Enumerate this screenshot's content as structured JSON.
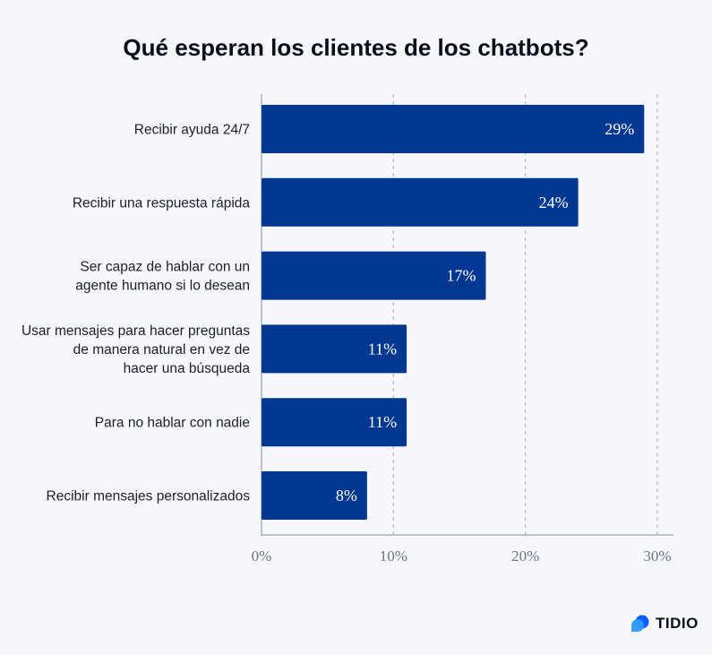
{
  "chart_data": {
    "type": "bar",
    "orientation": "horizontal",
    "title": "Qué esperan los clientes de los chatbots?",
    "categories": [
      [
        "Recibir ayuda 24/7"
      ],
      [
        "Recibir una respuesta rápida"
      ],
      [
        "Ser capaz de hablar con un",
        "agente humano si lo  desean"
      ],
      [
        "Usar mensajes para hacer preguntas",
        "de manera natural en vez de",
        "hacer una búsqueda"
      ],
      [
        "Para no hablar con nadie"
      ],
      [
        "Recibir mensajes personalizados"
      ]
    ],
    "values": [
      29,
      24,
      17,
      11,
      11,
      8
    ],
    "data_labels": [
      "29%",
      "24%",
      "17%",
      "11%",
      "11%",
      "8%"
    ],
    "xlim": [
      0,
      30
    ],
    "x_ticks": [
      0,
      10,
      20,
      30
    ],
    "x_tick_labels": [
      "0%",
      "10%",
      "20%",
      "30%"
    ],
    "grid": "vertical dashed",
    "bar_color": "#003891"
  },
  "logo": {
    "text": "TIDIO",
    "colors": [
      "#0a5cff",
      "#2a9bff"
    ]
  }
}
